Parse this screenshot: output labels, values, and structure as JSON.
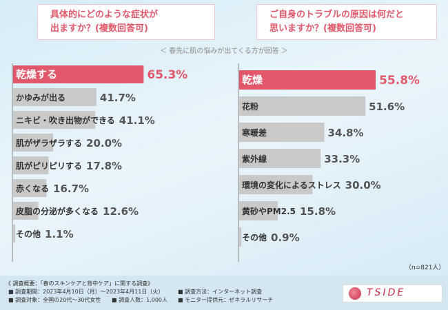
{
  "question_left": {
    "line1": "具体的にどのような症状が",
    "line2": "出ますか？",
    "note": "(複数回答可)"
  },
  "question_right": {
    "line1": "ご自身のトラブルの原因は何だと",
    "line2": "思いますか？",
    "note": "(複数回答可)"
  },
  "subtitle": "＜ 春先に肌の悩みが出てくる方が回答 ＞",
  "n_label": "（n=821人）",
  "chart_data": [
    {
      "type": "bar",
      "orientation": "horizontal",
      "title": "具体的にどのような症状が出ますか？(複数回答可)",
      "unit": "%",
      "xlim": [
        0,
        100
      ],
      "categories": [
        "乾燥する",
        "かゆみが出る",
        "ニキビ・吹き出物ができる",
        "肌がザラザラする",
        "肌がピリピリする",
        "赤くなる",
        "皮脂の分泌が多くなる",
        "その他"
      ],
      "values": [
        65.3,
        41.7,
        41.1,
        20.0,
        17.8,
        16.7,
        12.6,
        1.1
      ],
      "value_labels": [
        "65.3%",
        "41.7%",
        "41.1%",
        "20.0%",
        "17.8%",
        "16.7%",
        "12.6%",
        "1.1%"
      ],
      "highlight_color": "#e0586a",
      "bar_color": "#c9c9c9"
    },
    {
      "type": "bar",
      "orientation": "horizontal",
      "title": "ご自身のトラブルの原因は何だと思いますか？(複数回答可)",
      "unit": "%",
      "xlim": [
        0,
        100
      ],
      "categories": [
        "乾燥",
        "花粉",
        "寒暖差",
        "紫外線",
        "環境の変化によるストレス",
        "黄砂やPM2.5",
        "その他"
      ],
      "values": [
        55.8,
        51.6,
        34.8,
        33.3,
        30.0,
        15.8,
        0.9
      ],
      "value_labels": [
        "55.8%",
        "51.6%",
        "34.8%",
        "33.3%",
        "30.0%",
        "15.8%",
        "0.9%"
      ],
      "highlight_color": "#e0586a",
      "bar_color": "#c9c9c9"
    }
  ],
  "footer": {
    "overview": "《 調査概要：「春のスキンケアと背中ケア」に関する調査》",
    "period": "■ 調査期間：2023年4月10日（月）～2023年4月11日（火）",
    "method": "■ 調査方法：インターネット調査",
    "target": "■ 調査対象：全国の20代～30代女性",
    "people": "■ 調査人数：1,000人",
    "provider": "■ モニター提供元：ゼネラルリサーチ"
  },
  "logo": {
    "text": "TSIDE"
  }
}
